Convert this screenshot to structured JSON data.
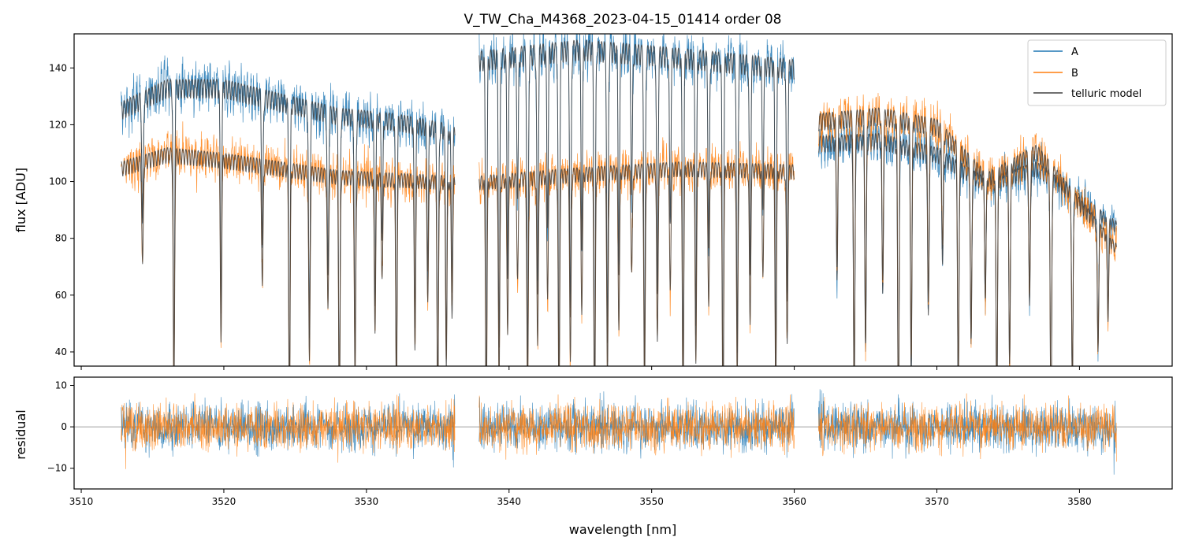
{
  "chart_data": [
    {
      "type": "line",
      "title": "V_TW_Cha_M4368_2023-04-15_01414  order 08",
      "xlabel": "",
      "ylabel": "flux [ADU]",
      "xlim": [
        3509.5,
        3586.5
      ],
      "ylim": [
        35,
        152
      ],
      "xticks": [
        3510,
        3520,
        3530,
        3540,
        3550,
        3560,
        3570,
        3580
      ],
      "yticks": [
        40,
        60,
        80,
        100,
        120,
        140
      ],
      "ytick_labels": [
        "40",
        "60",
        "80",
        "100",
        "120",
        "140"
      ],
      "segments": [
        [
          3512.8,
          3536.2
        ],
        [
          3537.9,
          3560.0
        ],
        [
          3561.7,
          3582.6
        ]
      ],
      "series": [
        {
          "name": "A",
          "color": "#1f77b4",
          "continuum": [
            [
              3512.8,
              128
            ],
            [
              3516.0,
              136
            ],
            [
              3520.0,
              136
            ],
            [
              3524.0,
              131
            ],
            [
              3528.0,
              126
            ],
            [
              3532.0,
              124
            ],
            [
              3536.2,
              120
            ],
            [
              3537.9,
              146
            ],
            [
              3545.0,
              150
            ],
            [
              3552.0,
              147
            ],
            [
              3560.0,
              143
            ],
            [
              3561.7,
              116
            ],
            [
              3566.0,
              117
            ],
            [
              3570.0,
              112
            ],
            [
              3573.5,
              101
            ],
            [
              3577.0,
              107
            ],
            [
              3582.6,
              86
            ]
          ]
        },
        {
          "name": "B",
          "color": "#ff7f0e",
          "continuum": [
            [
              3512.8,
              107
            ],
            [
              3516.0,
              112
            ],
            [
              3520.0,
              110
            ],
            [
              3524.0,
              107
            ],
            [
              3528.0,
              104
            ],
            [
              3532.0,
              103
            ],
            [
              3536.2,
              102
            ],
            [
              3537.9,
              102
            ],
            [
              3545.0,
              105
            ],
            [
              3552.0,
              107
            ],
            [
              3560.0,
              106
            ],
            [
              3561.7,
              124
            ],
            [
              3566.0,
              126
            ],
            [
              3570.0,
              122
            ],
            [
              3573.5,
              103
            ],
            [
              3577.0,
              113
            ],
            [
              3582.6,
              78
            ]
          ]
        },
        {
          "name": "telluric model",
          "color": "#404040",
          "continuum": []
        }
      ],
      "legend": [
        "A",
        "B",
        "telluric model"
      ],
      "legend_position": "top-right",
      "absorption_lines": [
        3514.3,
        3516.5,
        3519.8,
        3522.7,
        3524.6,
        3526.0,
        3527.3,
        3528.1,
        3529.2,
        3530.6,
        3531.1,
        3532.1,
        3533.4,
        3534.3,
        3535.0,
        3535.6,
        3536.0,
        3538.4,
        3539.3,
        3539.9,
        3540.6,
        3541.3,
        3542.0,
        3542.7,
        3543.5,
        3544.3,
        3545.1,
        3546.0,
        3546.9,
        3547.7,
        3548.6,
        3549.5,
        3550.4,
        3551.3,
        3552.2,
        3553.1,
        3554.0,
        3555.0,
        3556.0,
        3556.9,
        3557.8,
        3558.7,
        3559.5,
        3563.0,
        3564.2,
        3565.0,
        3566.2,
        3567.3,
        3568.2,
        3569.4,
        3570.4,
        3571.5,
        3572.4,
        3573.4,
        3574.2,
        3575.1,
        3576.5,
        3578.0,
        3579.5,
        3581.3,
        3582.0
      ]
    },
    {
      "type": "line",
      "title": "",
      "xlabel": "wavelength [nm]",
      "ylabel": "residual",
      "xlim": [
        3509.5,
        3586.5
      ],
      "ylim": [
        -15,
        12
      ],
      "xticks": [
        3510,
        3520,
        3530,
        3540,
        3550,
        3560,
        3570,
        3580
      ],
      "xtick_labels": [
        "3510",
        "3520",
        "3530",
        "3540",
        "3550",
        "3560",
        "3570",
        "3580"
      ],
      "yticks": [
        -10,
        0,
        10
      ],
      "ytick_labels": [
        "−10",
        "0",
        "10"
      ],
      "zero_line": 0,
      "noise_amplitude": 4.5,
      "series": [
        {
          "name": "A",
          "color": "#1f77b4"
        },
        {
          "name": "B",
          "color": "#ff7f0e"
        }
      ]
    }
  ]
}
